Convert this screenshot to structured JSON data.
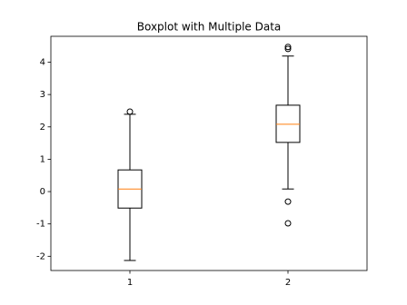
{
  "chart_data": {
    "type": "box",
    "title": "Boxplot with Multiple Data",
    "categories": [
      "1",
      "2"
    ],
    "boxes": [
      {
        "whislo": -2.13,
        "q1": -0.51,
        "med": 0.08,
        "q3": 0.67,
        "whishi": 2.39,
        "fliers": [
          2.47
        ]
      },
      {
        "whislo": 0.08,
        "q1": 1.52,
        "med": 2.08,
        "q3": 2.67,
        "whishi": 4.19,
        "fliers": [
          4.47,
          4.41,
          -0.31,
          -0.98
        ]
      }
    ],
    "color": "#000000",
    "median_color": "#ff7f0e",
    "xlim": [
      0.5,
      2.5
    ],
    "ylim": [
      -2.44,
      4.8
    ],
    "yticks": [
      -2,
      -1,
      0,
      1,
      2,
      3,
      4
    ],
    "grid": false
  }
}
